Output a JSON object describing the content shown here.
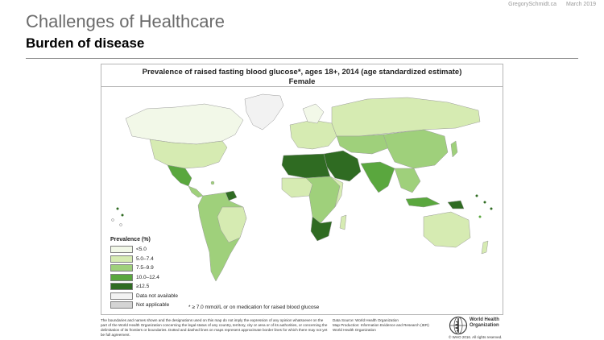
{
  "header": {
    "author": "GregorySchmidt.ca",
    "date": "March 2019",
    "title": "Challenges of Healthcare",
    "subtitle": "Burden of disease"
  },
  "map": {
    "title": "Prevalence of raised fasting blood glucose*, ages 18+, 2014  (age standardized estimate)",
    "subtitle": "Female",
    "footnote": "* ≥ 7.0 mmol/L or on medication for raised blood glucose",
    "legend": {
      "title": "Prevalence (%)",
      "items": [
        {
          "label": "<5.0",
          "color": "#f2f8e8"
        },
        {
          "label": "5.0–7.4",
          "color": "#d6ebb2"
        },
        {
          "label": "7.5–9.9",
          "color": "#9fd07b"
        },
        {
          "label": "10.0–12.4",
          "color": "#5aa73e"
        },
        {
          "label": "≥12.5",
          "color": "#2f6b22"
        },
        {
          "label": "Data not available",
          "color": "#f2f2f2"
        },
        {
          "label": "Not applicable",
          "color": "#d4d4d4"
        }
      ]
    }
  },
  "footer": {
    "disclaimer": "The boundaries and names shown and the designations used on this map do not imply the expression of any opinion whatsoever on the part of the World Health Organization concerning the legal status of any country, territory, city or area or of its authorities, or concerning the delimitation of its frontiers or boundaries. Dotted and dashed lines on maps represent approximate border lines for which there may not yet be full agreement.",
    "source_lines": [
      "Data Source: World Health Organization",
      "Map Production: Information Evidence and Research (IER)",
      "World Health Organization"
    ],
    "org_name": "World Health Organization",
    "copyright": "© WHO 2016. All rights reserved."
  }
}
